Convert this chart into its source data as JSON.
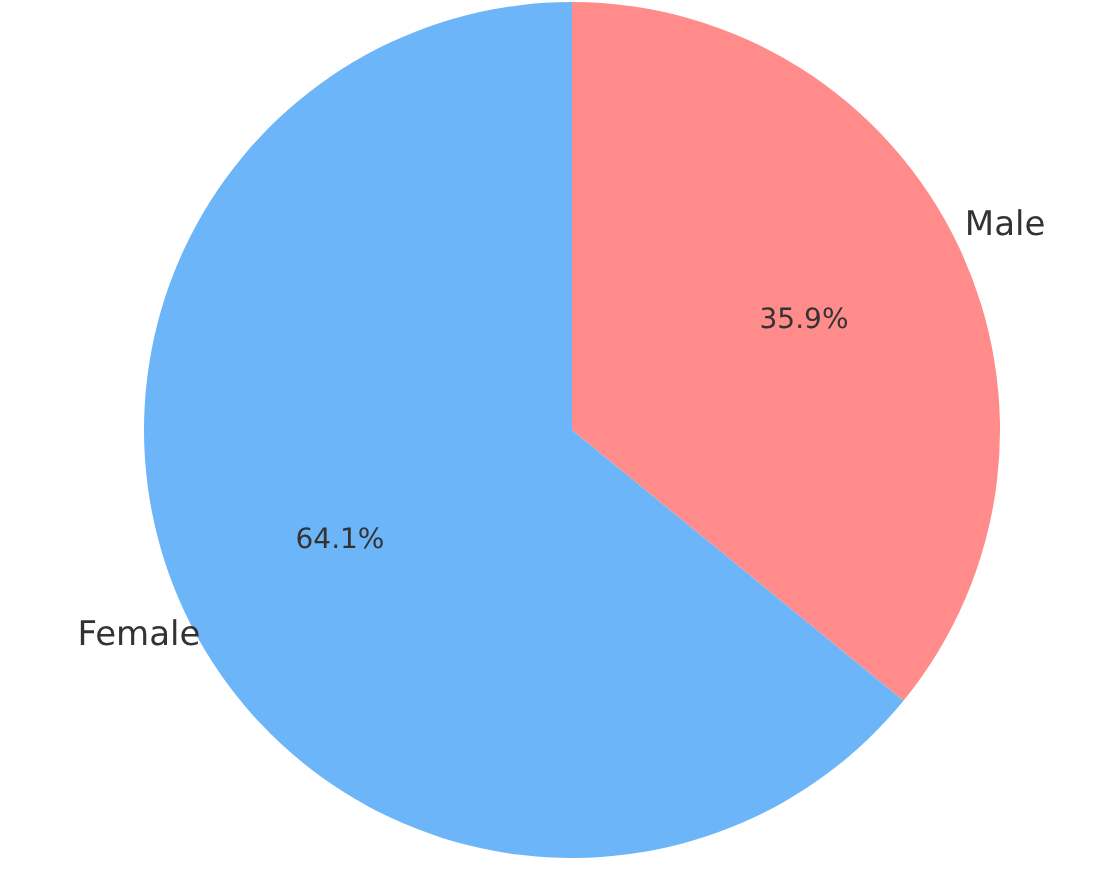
{
  "chart_data": {
    "type": "pie",
    "categories": [
      "Male",
      "Female"
    ],
    "values": [
      35.9,
      64.1
    ],
    "colors": [
      "#ff8b8b",
      "#6cb5f8"
    ],
    "value_labels": [
      "35.9%",
      "64.1%"
    ]
  }
}
